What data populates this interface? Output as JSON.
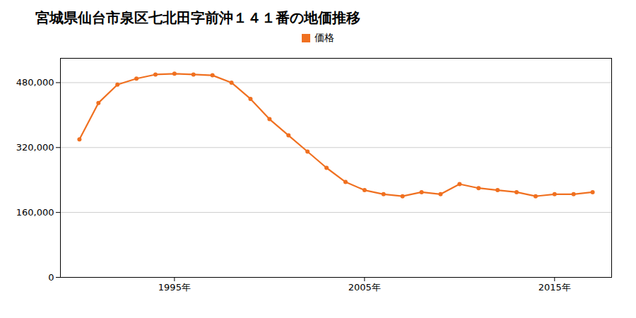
{
  "chart_data": {
    "type": "line",
    "title": "宮城県仙台市泉区七北田字前沖１４１番の地価推移",
    "x": [
      1990,
      1991,
      1992,
      1993,
      1994,
      1995,
      1996,
      1997,
      1998,
      1999,
      2000,
      2001,
      2002,
      2003,
      2004,
      2005,
      2006,
      2007,
      2008,
      2009,
      2010,
      2011,
      2012,
      2013,
      2014,
      2015,
      2016,
      2017
    ],
    "series": [
      {
        "name": "価格",
        "color": "#f07020",
        "marker": "circle",
        "values": [
          340000,
          430000,
          475000,
          490000,
          500000,
          502000,
          500000,
          498000,
          480000,
          440000,
          390000,
          350000,
          310000,
          270000,
          235000,
          215000,
          205000,
          200000,
          210000,
          205000,
          230000,
          220000,
          215000,
          210000,
          200000,
          205000,
          205000,
          210000
        ]
      }
    ],
    "xlim": [
      1989,
      2018
    ],
    "xticks": [
      {
        "value": 1995,
        "label": "1995年"
      },
      {
        "value": 2005,
        "label": "2005年"
      },
      {
        "value": 2015,
        "label": "2015年"
      }
    ],
    "ylim": [
      0,
      540000
    ],
    "yticks": [
      0,
      {
        "value": 160000,
        "label": "160,000"
      },
      {
        "value": 320000,
        "label": "320,000"
      },
      {
        "value": 480000,
        "label": "480,000"
      }
    ],
    "grid": "y",
    "legend": "top"
  }
}
